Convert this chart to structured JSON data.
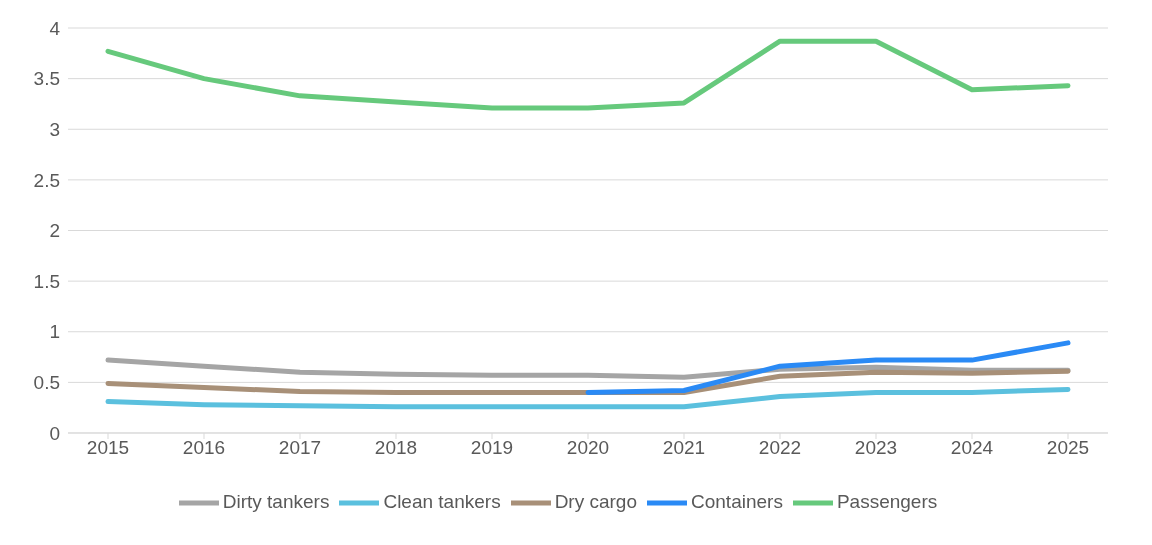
{
  "chart_data": {
    "type": "line",
    "categories": [
      "2015",
      "2016",
      "2017",
      "2018",
      "2019",
      "2020",
      "2021",
      "2022",
      "2023",
      "2024",
      "2025"
    ],
    "series": [
      {
        "name": "Dirty tankers",
        "color": "#a5a5a5",
        "values": [
          0.72,
          0.66,
          0.6,
          0.58,
          0.57,
          0.57,
          0.55,
          0.63,
          0.65,
          0.62,
          0.62
        ]
      },
      {
        "name": "Clean tankers",
        "color": "#5bc0de",
        "values": [
          0.31,
          0.28,
          0.27,
          0.26,
          0.26,
          0.26,
          0.26,
          0.36,
          0.4,
          0.4,
          0.43
        ]
      },
      {
        "name": "Dry cargo",
        "color": "#a89078",
        "values": [
          0.49,
          0.45,
          0.41,
          0.4,
          0.4,
          0.4,
          0.4,
          0.56,
          0.6,
          0.59,
          0.61
        ]
      },
      {
        "name": "Containers",
        "color": "#2a8af5",
        "values": [
          null,
          null,
          null,
          null,
          null,
          0.4,
          0.42,
          0.66,
          0.72,
          0.72,
          0.89
        ]
      },
      {
        "name": "Passengers",
        "color": "#66c97c",
        "values": [
          3.77,
          3.5,
          3.33,
          3.27,
          3.21,
          3.21,
          3.26,
          3.87,
          3.87,
          3.39,
          3.43
        ]
      }
    ],
    "ylim": [
      0,
      4
    ],
    "yticks": [
      0,
      0.5,
      1,
      1.5,
      2,
      2.5,
      3,
      3.5,
      4
    ],
    "grid": "y",
    "legend": "bottom",
    "marker": "none",
    "line_style": "solid"
  }
}
